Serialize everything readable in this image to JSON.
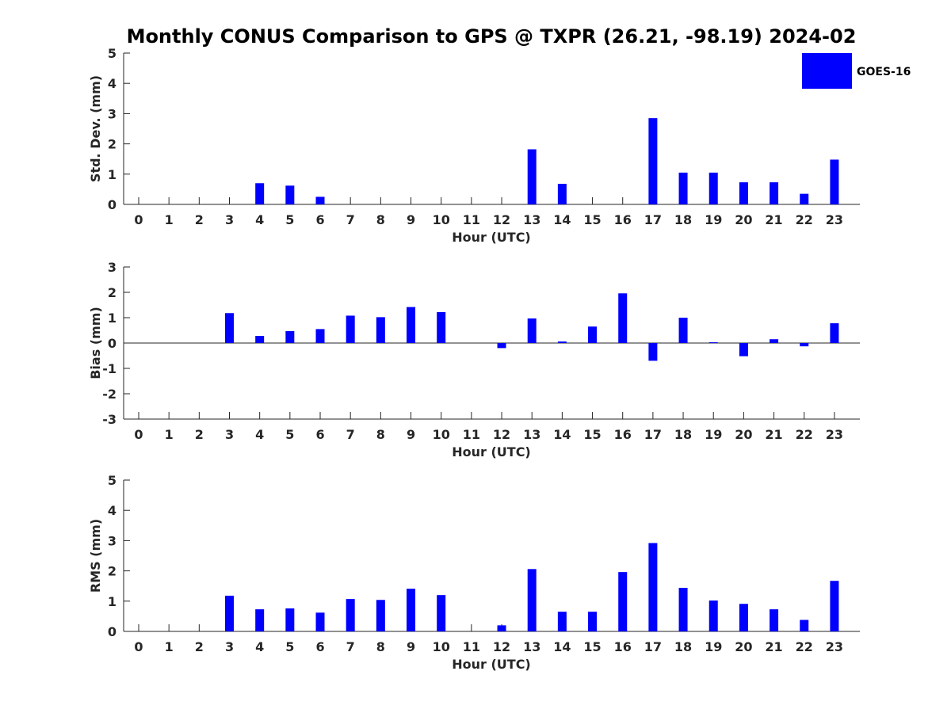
{
  "title": "Monthly CONUS Comparison to GPS @ TXPR (26.21, -98.19) 2024-02",
  "legend": {
    "label": "GOES-16",
    "color": "#0000ff"
  },
  "chart_data": [
    {
      "type": "bar",
      "ylabel": "Std. Dev. (mm)",
      "xlabel": "Hour (UTC)",
      "ylim": [
        0,
        5
      ],
      "yticks": [
        0,
        1,
        2,
        3,
        4,
        5
      ],
      "categories": [
        "0",
        "1",
        "2",
        "3",
        "4",
        "5",
        "6",
        "7",
        "8",
        "9",
        "10",
        "11",
        "12",
        "13",
        "14",
        "15",
        "16",
        "17",
        "18",
        "19",
        "20",
        "21",
        "22",
        "23"
      ],
      "series": [
        {
          "name": "GOES-16",
          "values": [
            null,
            null,
            null,
            null,
            0.7,
            0.62,
            0.25,
            null,
            null,
            null,
            null,
            null,
            null,
            1.82,
            0.68,
            null,
            null,
            2.85,
            1.05,
            1.05,
            0.73,
            0.73,
            0.35,
            1.48
          ]
        }
      ]
    },
    {
      "type": "bar",
      "ylabel": "Bias (mm)",
      "xlabel": "Hour (UTC)",
      "ylim": [
        -3,
        3
      ],
      "yticks": [
        -3,
        -2,
        -1,
        0,
        1,
        2,
        3
      ],
      "categories": [
        "0",
        "1",
        "2",
        "3",
        "4",
        "5",
        "6",
        "7",
        "8",
        "9",
        "10",
        "11",
        "12",
        "13",
        "14",
        "15",
        "16",
        "17",
        "18",
        "19",
        "20",
        "21",
        "22",
        "23"
      ],
      "series": [
        {
          "name": "GOES-16",
          "values": [
            null,
            null,
            null,
            1.18,
            0.28,
            0.47,
            0.55,
            1.08,
            1.02,
            1.42,
            1.22,
            null,
            -0.2,
            0.97,
            0.06,
            0.65,
            1.96,
            -0.7,
            1.0,
            0.03,
            -0.52,
            0.15,
            -0.13,
            0.78
          ]
        }
      ]
    },
    {
      "type": "bar",
      "ylabel": "RMS (mm)",
      "xlabel": "Hour (UTC)",
      "ylim": [
        0,
        5
      ],
      "yticks": [
        0,
        1,
        2,
        3,
        4,
        5
      ],
      "categories": [
        "0",
        "1",
        "2",
        "3",
        "4",
        "5",
        "6",
        "7",
        "8",
        "9",
        "10",
        "11",
        "12",
        "13",
        "14",
        "15",
        "16",
        "17",
        "18",
        "19",
        "20",
        "21",
        "22",
        "23"
      ],
      "series": [
        {
          "name": "GOES-16",
          "values": [
            null,
            null,
            null,
            1.18,
            0.73,
            0.76,
            0.62,
            1.07,
            1.04,
            1.41,
            1.2,
            null,
            0.2,
            2.06,
            0.65,
            0.65,
            1.96,
            2.92,
            1.44,
            1.02,
            0.91,
            0.73,
            0.38,
            1.67
          ]
        }
      ]
    }
  ]
}
